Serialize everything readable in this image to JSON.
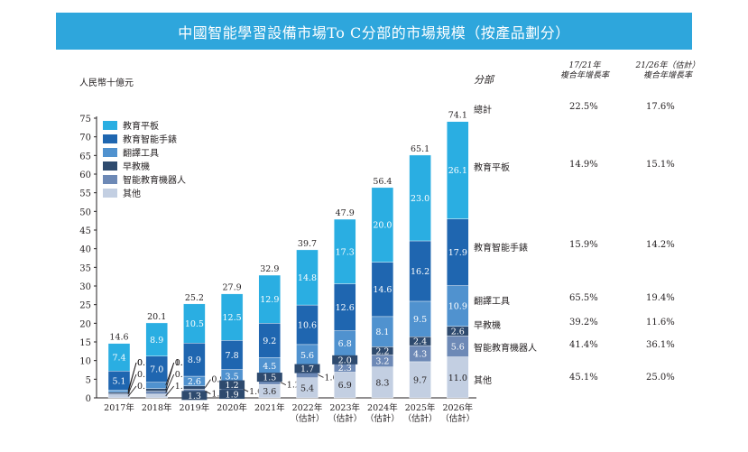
{
  "title": "中國智能學習設備市場To C分部的市場規模（按產品劃分）",
  "chart_data": {
    "type": "bar",
    "stacked": true,
    "title": "中國智能學習設備市場To C分部的市場規模（按產品劃分）",
    "ylabel": "人民幣十億元",
    "xlabel": "",
    "ylim": [
      0,
      75
    ],
    "yticks": [
      0,
      5,
      10,
      15,
      20,
      25,
      30,
      35,
      40,
      45,
      50,
      55,
      60,
      65,
      70,
      75
    ],
    "grid": false,
    "legend_position": "top-left",
    "categories": [
      [
        "2017年"
      ],
      [
        "2018年"
      ],
      [
        "2019年"
      ],
      [
        "2020年"
      ],
      [
        "2021年"
      ],
      [
        "2022年",
        "（估計）"
      ],
      [
        "2023年",
        "（估計）"
      ],
      [
        "2024年",
        "（估計）"
      ],
      [
        "2025年",
        "（估計）"
      ],
      [
        "2026年",
        "（估計）"
      ]
    ],
    "series": [
      {
        "name": "其他",
        "color": "#c3cfe2",
        "values": [
          0.8,
          1.0,
          1.3,
          1.9,
          3.6,
          5.4,
          6.9,
          8.3,
          9.7,
          11.0
        ]
      },
      {
        "name": "智能教育機器人",
        "color": "#6d89b6",
        "values": [
          0.3,
          0.8,
          1.0,
          1.0,
          1.2,
          1.6,
          2.3,
          3.2,
          4.3,
          5.6
        ]
      },
      {
        "name": "早教機",
        "color": "#2e4a6e",
        "values": [
          0.4,
          0.7,
          0.9,
          1.2,
          1.5,
          1.7,
          2.0,
          2.2,
          2.4,
          2.6
        ]
      },
      {
        "name": "翻譯工具",
        "color": "#5092cf",
        "values": [
          0.6,
          1.7,
          2.6,
          3.5,
          4.5,
          5.6,
          6.8,
          8.1,
          9.5,
          10.9
        ]
      },
      {
        "name": "教育智能手錶",
        "color": "#1f66b0",
        "values": [
          5.1,
          7.0,
          8.9,
          7.8,
          9.2,
          10.6,
          12.6,
          14.6,
          16.2,
          17.9
        ]
      },
      {
        "name": "教育平板",
        "color": "#2aaee2",
        "values": [
          7.4,
          8.9,
          10.5,
          12.5,
          12.9,
          14.8,
          17.3,
          20.0,
          23.0,
          26.1
        ]
      }
    ],
    "totals": [
      14.6,
      20.1,
      25.2,
      27.9,
      32.9,
      39.7,
      47.9,
      56.4,
      65.1,
      74.1
    ],
    "legend_order": [
      "教育平板",
      "教育智能手錶",
      "翻譯工具",
      "早教機",
      "智能教育機器人",
      "其他"
    ]
  },
  "cagr_table": {
    "header_segment": "分部",
    "header_col1": [
      "17/21年",
      "複合年增長率"
    ],
    "header_col2": [
      "21/26年（估計）",
      "複合年增長率"
    ],
    "rows": [
      {
        "segment": "總計",
        "cagr_17_21": "22.5%",
        "cagr_21_26": "17.6%"
      },
      {
        "segment": "教育平板",
        "cagr_17_21": "14.9%",
        "cagr_21_26": "15.1%"
      },
      {
        "segment": "教育智能手錶",
        "cagr_17_21": "15.9%",
        "cagr_21_26": "14.2%"
      },
      {
        "segment": "翻譯工具",
        "cagr_17_21": "65.5%",
        "cagr_21_26": "19.4%"
      },
      {
        "segment": "早教機",
        "cagr_17_21": "39.2%",
        "cagr_21_26": "11.6%"
      },
      {
        "segment": "智能教育機器人",
        "cagr_17_21": "41.4%",
        "cagr_21_26": "36.1%"
      },
      {
        "segment": "其他",
        "cagr_17_21": "45.1%",
        "cagr_21_26": "25.0%"
      }
    ]
  }
}
